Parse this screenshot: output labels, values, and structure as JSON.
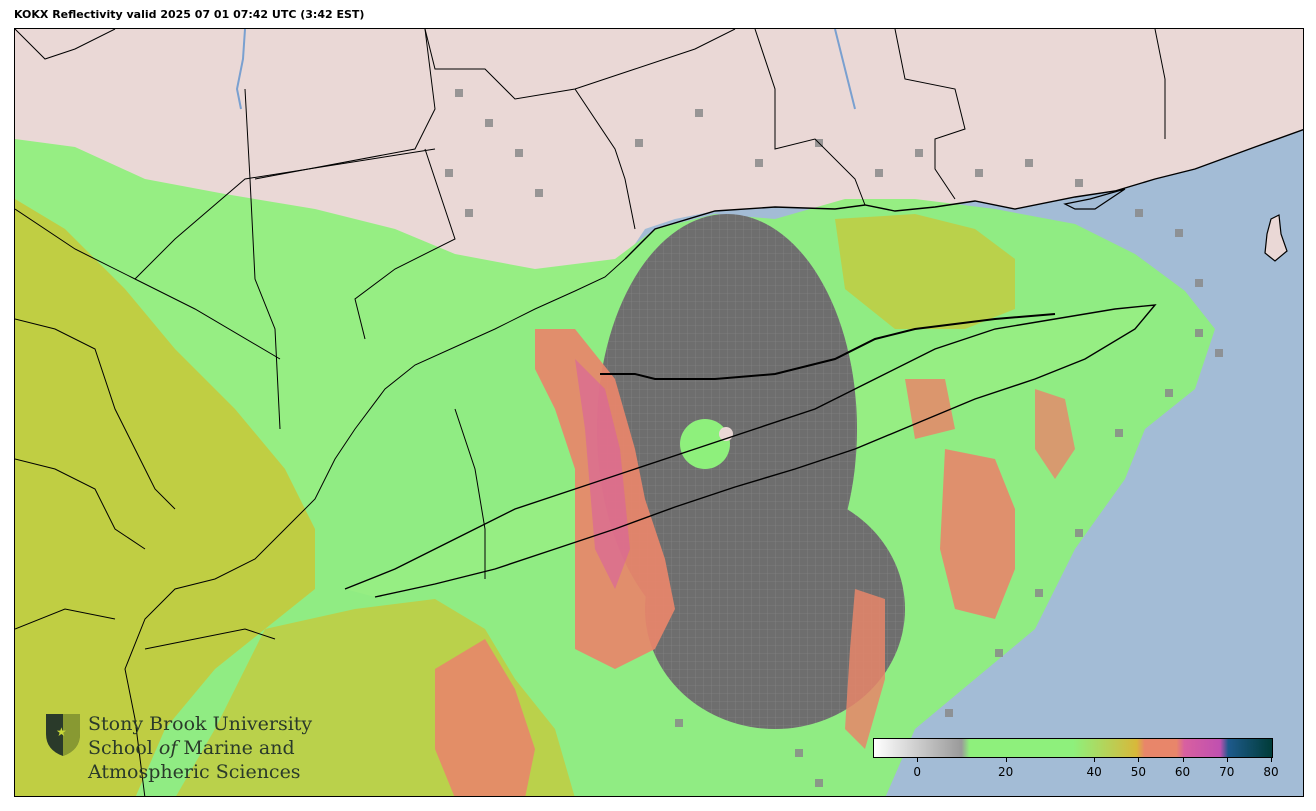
{
  "title": "KOKX Reflectivity valid 2025 07 01 07:42 UTC (3:42 EST)",
  "colorbar": {
    "ticks": [
      "0",
      "20",
      "40",
      "50",
      "60",
      "70",
      "80"
    ],
    "tick_values": [
      0,
      20,
      40,
      50,
      60,
      70,
      80
    ],
    "range": [
      -10,
      80
    ],
    "colors": [
      "#ffffff",
      "#9a9a9a",
      "#8ef07c",
      "#d8b83a",
      "#e8866a",
      "#d860a0",
      "#1e5a8c",
      "#003c38"
    ]
  },
  "logo": {
    "line1": "Stony Brook University",
    "line2_prefix": "School ",
    "line2_italic": "of",
    "line2_suffix": " Marine and",
    "line3": "Atmospheric Sciences"
  },
  "colors": {
    "ocean": "#a3bcd6",
    "land": "#ead8d6",
    "echo_light": "#8ef07c",
    "echo_moderate": "#c8c838",
    "echo_heavy": "#e8866a",
    "echo_intense": "#d860a0",
    "clear_air": "#6a6a6a"
  }
}
